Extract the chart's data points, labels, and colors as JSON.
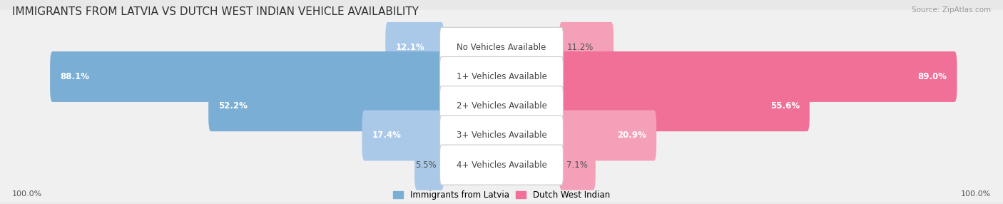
{
  "title": "IMMIGRANTS FROM LATVIA VS DUTCH WEST INDIAN VEHICLE AVAILABILITY",
  "source": "Source: ZipAtlas.com",
  "categories": [
    "No Vehicles Available",
    "1+ Vehicles Available",
    "2+ Vehicles Available",
    "3+ Vehicles Available",
    "4+ Vehicles Available"
  ],
  "latvia_values": [
    12.1,
    88.1,
    52.2,
    17.4,
    5.5
  ],
  "dutch_values": [
    11.2,
    89.0,
    55.6,
    20.9,
    7.1
  ],
  "latvia_color": "#7aaed4",
  "dutch_color": "#f07098",
  "latvia_color_light": "#aac8e8",
  "dutch_color_light": "#f4a0b8",
  "latvia_label": "Immigrants from Latvia",
  "dutch_label": "Dutch West Indian",
  "background_color": "#e8e8e8",
  "row_bg_color": "#f0f0f0",
  "row_sep_color": "#d8d8d8",
  "center_label_color": "#ffffff",
  "title_fontsize": 11,
  "label_fontsize": 8.5,
  "value_fontsize": 8.5,
  "footer_fontsize": 8.0,
  "footer_value": "100.0%"
}
